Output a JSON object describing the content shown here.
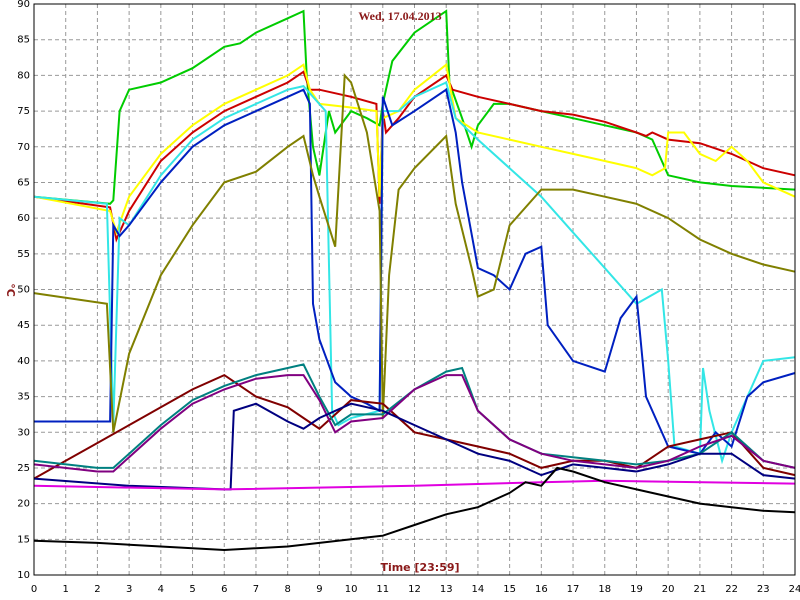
{
  "chart_data": {
    "type": "line",
    "title": "Wed, 17.04.2013",
    "y_label": "°C",
    "x_label": "Time [23:59]",
    "xlim": [
      0,
      24
    ],
    "xticks": [
      0,
      1,
      2,
      3,
      4,
      5,
      6,
      7,
      8,
      9,
      10,
      11,
      12,
      13,
      14,
      15,
      16,
      17,
      18,
      19,
      20,
      21,
      22,
      23,
      24
    ],
    "ylim": [
      10,
      90
    ],
    "yticks": [
      10,
      15,
      20,
      25,
      30,
      35,
      40,
      45,
      50,
      55,
      60,
      65,
      70,
      75,
      80,
      85,
      90
    ],
    "grid": true,
    "series": [
      {
        "color": "#00cc00",
        "x": [
          0,
          2.4,
          2.5,
          2.7,
          3,
          4,
          5,
          6,
          6.5,
          7,
          8,
          8.5,
          8.6,
          8.8,
          9,
          9.3,
          9.5,
          10,
          10.5,
          10.9,
          11,
          11.3,
          12,
          13,
          13.1,
          13.5,
          13.8,
          14,
          14.5,
          15,
          16,
          17,
          18,
          19,
          19.5,
          20,
          21,
          22,
          24
        ],
        "values": [
          63,
          62,
          62.5,
          75,
          78,
          79,
          81,
          84,
          84.5,
          86,
          88,
          89,
          80,
          70,
          66,
          75,
          72,
          75,
          74,
          73,
          76,
          82,
          86,
          89,
          79,
          74,
          70,
          73,
          76,
          76,
          75,
          74,
          73,
          72,
          71,
          66,
          65,
          64.5,
          64
        ]
      },
      {
        "color": "#cc0000",
        "x": [
          0,
          2.4,
          2.6,
          3,
          4,
          5,
          6,
          7,
          8,
          8.5,
          8.7,
          9,
          10,
          10.8,
          10.9,
          11,
          11.1,
          11.5,
          12,
          13,
          13.2,
          14,
          15,
          16,
          17,
          18,
          19,
          19.3,
          19.5,
          20,
          21,
          22,
          23,
          24
        ],
        "values": [
          63,
          61.5,
          57,
          61,
          68,
          72,
          75,
          77,
          79,
          80.5,
          78,
          78,
          77,
          76,
          62,
          75,
          72,
          74,
          77,
          80,
          78,
          77,
          76,
          75,
          74.5,
          73.5,
          72,
          71.5,
          72,
          71,
          70.5,
          69,
          67,
          66
        ]
      },
      {
        "color": "#ffff00",
        "x": [
          0,
          2.4,
          2.6,
          3,
          4,
          5,
          6,
          7,
          8,
          8.5,
          8.7,
          9,
          10,
          10.8,
          10.9,
          11,
          11.5,
          12,
          13,
          13.3,
          14,
          15,
          16,
          17,
          18,
          19,
          19.5,
          19.9,
          20,
          20.5,
          21,
          21.5,
          22,
          22.5,
          23,
          24
        ],
        "values": [
          63,
          61,
          58,
          63,
          69,
          73,
          76,
          78,
          80,
          81.5,
          78,
          76,
          75.5,
          75,
          63,
          74,
          75,
          78,
          81.5,
          74,
          72,
          71,
          70,
          69,
          68,
          67,
          66,
          67,
          72,
          72,
          69,
          68,
          70,
          68,
          65,
          63
        ]
      },
      {
        "color": "#33e6e6",
        "x": [
          0,
          2.3,
          2.5,
          2.7,
          3,
          4,
          5,
          6,
          7,
          8,
          8.5,
          8.8,
          9.2,
          9.4,
          9.6,
          10,
          10.9,
          11,
          11.5,
          12,
          13,
          13.3,
          14,
          15,
          16,
          17,
          18,
          19,
          19.8,
          20,
          20.2,
          21,
          21.1,
          21.3,
          21.7,
          22,
          22.5,
          23,
          24
        ],
        "values": [
          63,
          62,
          31,
          60,
          59,
          66,
          71,
          74,
          76,
          78,
          78.5,
          77,
          75,
          33,
          31,
          32,
          33,
          75,
          75,
          77,
          79,
          74,
          71,
          67,
          63,
          58,
          53,
          48,
          50,
          40,
          28,
          27,
          39,
          33,
          26,
          30,
          35,
          40,
          40.5
        ]
      },
      {
        "color": "#0020c0",
        "x": [
          0,
          2.4,
          2.5,
          2.7,
          3,
          4,
          5,
          6,
          7,
          8,
          8.5,
          8.7,
          8.8,
          9,
          9.5,
          10,
          10.5,
          10.9,
          11,
          11.3,
          12,
          13,
          13.3,
          13.5,
          14,
          14.5,
          15,
          15.5,
          16,
          16.2,
          17,
          18,
          18.5,
          19,
          19.3,
          20,
          21,
          21.5,
          22,
          22.5,
          23,
          24
        ],
        "values": [
          31.5,
          31.5,
          59,
          57.5,
          59,
          65,
          70,
          73,
          75,
          77,
          78,
          76,
          48,
          43,
          37,
          35,
          34,
          33,
          77,
          73,
          75,
          78,
          72,
          65,
          53,
          52,
          50,
          55,
          56,
          45,
          40,
          38.5,
          46,
          49,
          35,
          28,
          27,
          30,
          28,
          35,
          37,
          38.3
        ]
      },
      {
        "color": "#808000",
        "x": [
          0,
          2.3,
          2.5,
          3,
          4,
          5,
          6,
          7,
          8,
          8.5,
          8.8,
          9,
          9.5,
          9.8,
          10,
          10.5,
          10.9,
          11,
          11.2,
          11.5,
          12,
          13,
          13.3,
          13.8,
          14,
          14.5,
          15,
          16,
          17,
          18,
          19,
          20,
          21,
          22,
          23,
          24
        ],
        "values": [
          49.5,
          48,
          30,
          41,
          52,
          59,
          65,
          66.5,
          70,
          71.5,
          66,
          63,
          56,
          80,
          79,
          72,
          61,
          32,
          52,
          64,
          67,
          71.5,
          62,
          53,
          49,
          50,
          59,
          64,
          64,
          63,
          62,
          60,
          57,
          55,
          53.5,
          52.5
        ]
      },
      {
        "color": "#800000",
        "x": [
          0,
          1,
          2,
          3,
          4,
          5,
          6,
          7,
          8,
          8.5,
          9,
          10,
          11,
          12,
          13,
          14,
          15,
          16,
          17,
          18,
          19,
          20,
          21,
          22,
          23,
          24
        ],
        "values": [
          23.5,
          26,
          28.5,
          31,
          33.5,
          36,
          38,
          35,
          33.5,
          32,
          30.5,
          34.5,
          34,
          30,
          29,
          28,
          27,
          25,
          26,
          26,
          25,
          28,
          29,
          30,
          25,
          24
        ]
      },
      {
        "color": "#008080",
        "x": [
          0,
          2,
          2.5,
          3,
          4,
          5,
          6,
          7,
          8,
          8.5,
          9,
          9.5,
          10,
          11,
          12,
          13,
          13.5,
          14,
          15,
          16,
          17,
          18,
          19,
          20,
          21,
          22,
          23,
          24
        ],
        "values": [
          26,
          25,
          25,
          27,
          31,
          34.5,
          36.5,
          38,
          39,
          39.5,
          35,
          31,
          32.5,
          32.5,
          36,
          38.5,
          39,
          33,
          29,
          27,
          26.5,
          26,
          25.5,
          26,
          27,
          30,
          26,
          25
        ]
      },
      {
        "color": "#800080",
        "x": [
          0,
          2,
          2.5,
          3,
          4,
          5,
          6,
          7,
          8,
          8.5,
          9,
          9.5,
          10,
          11,
          12,
          13,
          13.5,
          14,
          15,
          16,
          17,
          18,
          19,
          20,
          21,
          22,
          23,
          24
        ],
        "values": [
          25.5,
          24.5,
          24.5,
          26.5,
          30.5,
          34,
          36,
          37.5,
          38,
          38,
          34.5,
          30,
          31.5,
          32,
          36,
          38,
          38,
          33,
          29,
          27,
          26,
          25.5,
          25,
          26,
          28,
          29.5,
          26,
          25
        ]
      },
      {
        "color": "#000080",
        "x": [
          0,
          3,
          6,
          6.2,
          6.3,
          7,
          8,
          8.5,
          9,
          10,
          11,
          12,
          13,
          14,
          15,
          16,
          17,
          18,
          19,
          20,
          21,
          22,
          23,
          24
        ],
        "values": [
          23.5,
          22.5,
          22,
          22,
          33,
          34,
          31.5,
          30.5,
          32,
          34,
          33,
          31,
          29,
          27,
          26,
          24,
          25.5,
          25,
          24.5,
          25.5,
          27,
          27,
          24,
          23.5
        ]
      },
      {
        "color": "#e000e0",
        "x": [
          0,
          6,
          12,
          16,
          18,
          24
        ],
        "values": [
          22.5,
          22,
          22.5,
          23,
          23.2,
          22.8
        ]
      },
      {
        "color": "#000000",
        "x": [
          0,
          2,
          4,
          6,
          8,
          10,
          11,
          12,
          13,
          14,
          15,
          15.5,
          16,
          16.5,
          17,
          18,
          19,
          20,
          21,
          22,
          23,
          24
        ],
        "values": [
          14.8,
          14.5,
          14,
          13.5,
          14,
          15,
          15.5,
          17,
          18.5,
          19.5,
          21.5,
          23,
          22.5,
          25,
          24.5,
          23,
          22,
          21,
          20,
          19.5,
          19,
          18.8
        ]
      }
    ]
  }
}
